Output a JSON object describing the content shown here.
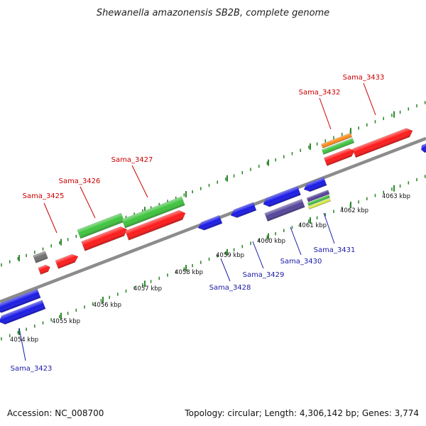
{
  "title": "Shewanella amazonensis SB2B, complete genome",
  "footer": {
    "accession": "Accession: NC_008700",
    "summary": "Topology: circular; Length: 4,306,142 bp; Genes: 3,774"
  },
  "colors": {
    "forward_label": "#cc0000",
    "reverse_label": "#1a1aa6",
    "backbone": "#8c8c8c",
    "tick": "#2f8a2f",
    "gene_red": "#ff1a1a",
    "gene_green": "#3ec43e",
    "gene_blue": "#1a1ae6",
    "gene_orange": "#ff8c1a",
    "gene_gray": "#707070",
    "gene_purple": "#55449a",
    "gene_yellow": "#d8ee3a"
  },
  "kbp_labels": [
    "4054 kbp",
    "4055 kbp",
    "4056 kbp",
    "4057 kbp",
    "4058 kbp",
    "4059 kbp",
    "4060 kbp",
    "4061 kbp",
    "4062 kbp",
    "4063 kbp"
  ],
  "gene_labels_forward": [
    "Sama_3425",
    "Sama_3426",
    "Sama_3427",
    "Sama_3432",
    "Sama_3433"
  ],
  "gene_labels_reverse": [
    "Sama_3423",
    "Sama_3428",
    "Sama_3429",
    "Sama_3430",
    "Sama_3431"
  ]
}
